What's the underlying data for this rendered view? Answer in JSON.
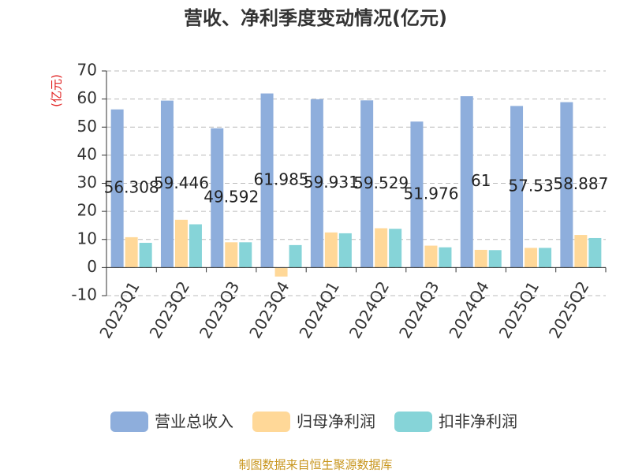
{
  "chart_data": {
    "type": "bar",
    "title": "营收、净利季度变动情况(亿元)",
    "y_label": "(亿元)",
    "source": "制图数据来自恒生聚源数据库",
    "categories": [
      "2023Q1",
      "2023Q2",
      "2023Q3",
      "2023Q4",
      "2024Q1",
      "2024Q2",
      "2024Q3",
      "2024Q4",
      "2025Q1",
      "2025Q2"
    ],
    "series": [
      {
        "name": "营业总收入",
        "color": "#8eaedc",
        "values": [
          56.308,
          59.446,
          49.592,
          61.985,
          59.931,
          59.529,
          51.976,
          61,
          57.53,
          58.887
        ],
        "labels": true
      },
      {
        "name": "归母净利润",
        "color": "#ffd898",
        "values": [
          10.8,
          17,
          9,
          -3.2,
          12.5,
          14,
          7.8,
          6.3,
          7,
          11.6
        ]
      },
      {
        "name": "扣非净利润",
        "color": "#86d4d8",
        "values": [
          8.8,
          15.4,
          9,
          8,
          12.2,
          13.8,
          7.2,
          6.2,
          7,
          10.5
        ]
      }
    ],
    "ylim": [
      -10,
      70
    ],
    "yticks": [
      -10,
      0,
      10,
      20,
      30,
      40,
      50,
      60,
      70
    ],
    "grid": true,
    "legend": "bottom"
  }
}
